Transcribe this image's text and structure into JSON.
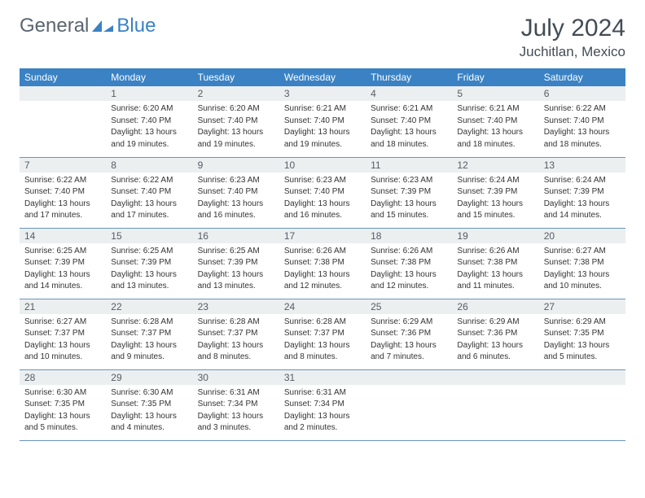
{
  "brand": {
    "part1": "General",
    "part2": "Blue",
    "text_color": "#5a6570",
    "accent_color": "#3a82c4"
  },
  "title": "July 2024",
  "location": "Juchitlan, Mexico",
  "header_bg": "#3a82c4",
  "header_fg": "#ffffff",
  "daynum_bg": "#eceff0",
  "border_color": "#6a94b8",
  "text_color": "#333333",
  "day_names": [
    "Sunday",
    "Monday",
    "Tuesday",
    "Wednesday",
    "Thursday",
    "Friday",
    "Saturday"
  ],
  "weeks": [
    [
      null,
      {
        "n": "1",
        "sunrise": "6:20 AM",
        "sunset": "7:40 PM",
        "daylight": "13 hours and 19 minutes."
      },
      {
        "n": "2",
        "sunrise": "6:20 AM",
        "sunset": "7:40 PM",
        "daylight": "13 hours and 19 minutes."
      },
      {
        "n": "3",
        "sunrise": "6:21 AM",
        "sunset": "7:40 PM",
        "daylight": "13 hours and 19 minutes."
      },
      {
        "n": "4",
        "sunrise": "6:21 AM",
        "sunset": "7:40 PM",
        "daylight": "13 hours and 18 minutes."
      },
      {
        "n": "5",
        "sunrise": "6:21 AM",
        "sunset": "7:40 PM",
        "daylight": "13 hours and 18 minutes."
      },
      {
        "n": "6",
        "sunrise": "6:22 AM",
        "sunset": "7:40 PM",
        "daylight": "13 hours and 18 minutes."
      }
    ],
    [
      {
        "n": "7",
        "sunrise": "6:22 AM",
        "sunset": "7:40 PM",
        "daylight": "13 hours and 17 minutes."
      },
      {
        "n": "8",
        "sunrise": "6:22 AM",
        "sunset": "7:40 PM",
        "daylight": "13 hours and 17 minutes."
      },
      {
        "n": "9",
        "sunrise": "6:23 AM",
        "sunset": "7:40 PM",
        "daylight": "13 hours and 16 minutes."
      },
      {
        "n": "10",
        "sunrise": "6:23 AM",
        "sunset": "7:40 PM",
        "daylight": "13 hours and 16 minutes."
      },
      {
        "n": "11",
        "sunrise": "6:23 AM",
        "sunset": "7:39 PM",
        "daylight": "13 hours and 15 minutes."
      },
      {
        "n": "12",
        "sunrise": "6:24 AM",
        "sunset": "7:39 PM",
        "daylight": "13 hours and 15 minutes."
      },
      {
        "n": "13",
        "sunrise": "6:24 AM",
        "sunset": "7:39 PM",
        "daylight": "13 hours and 14 minutes."
      }
    ],
    [
      {
        "n": "14",
        "sunrise": "6:25 AM",
        "sunset": "7:39 PM",
        "daylight": "13 hours and 14 minutes."
      },
      {
        "n": "15",
        "sunrise": "6:25 AM",
        "sunset": "7:39 PM",
        "daylight": "13 hours and 13 minutes."
      },
      {
        "n": "16",
        "sunrise": "6:25 AM",
        "sunset": "7:39 PM",
        "daylight": "13 hours and 13 minutes."
      },
      {
        "n": "17",
        "sunrise": "6:26 AM",
        "sunset": "7:38 PM",
        "daylight": "13 hours and 12 minutes."
      },
      {
        "n": "18",
        "sunrise": "6:26 AM",
        "sunset": "7:38 PM",
        "daylight": "13 hours and 12 minutes."
      },
      {
        "n": "19",
        "sunrise": "6:26 AM",
        "sunset": "7:38 PM",
        "daylight": "13 hours and 11 minutes."
      },
      {
        "n": "20",
        "sunrise": "6:27 AM",
        "sunset": "7:38 PM",
        "daylight": "13 hours and 10 minutes."
      }
    ],
    [
      {
        "n": "21",
        "sunrise": "6:27 AM",
        "sunset": "7:37 PM",
        "daylight": "13 hours and 10 minutes."
      },
      {
        "n": "22",
        "sunrise": "6:28 AM",
        "sunset": "7:37 PM",
        "daylight": "13 hours and 9 minutes."
      },
      {
        "n": "23",
        "sunrise": "6:28 AM",
        "sunset": "7:37 PM",
        "daylight": "13 hours and 8 minutes."
      },
      {
        "n": "24",
        "sunrise": "6:28 AM",
        "sunset": "7:37 PM",
        "daylight": "13 hours and 8 minutes."
      },
      {
        "n": "25",
        "sunrise": "6:29 AM",
        "sunset": "7:36 PM",
        "daylight": "13 hours and 7 minutes."
      },
      {
        "n": "26",
        "sunrise": "6:29 AM",
        "sunset": "7:36 PM",
        "daylight": "13 hours and 6 minutes."
      },
      {
        "n": "27",
        "sunrise": "6:29 AM",
        "sunset": "7:35 PM",
        "daylight": "13 hours and 5 minutes."
      }
    ],
    [
      {
        "n": "28",
        "sunrise": "6:30 AM",
        "sunset": "7:35 PM",
        "daylight": "13 hours and 5 minutes."
      },
      {
        "n": "29",
        "sunrise": "6:30 AM",
        "sunset": "7:35 PM",
        "daylight": "13 hours and 4 minutes."
      },
      {
        "n": "30",
        "sunrise": "6:31 AM",
        "sunset": "7:34 PM",
        "daylight": "13 hours and 3 minutes."
      },
      {
        "n": "31",
        "sunrise": "6:31 AM",
        "sunset": "7:34 PM",
        "daylight": "13 hours and 2 minutes."
      },
      null,
      null,
      null
    ]
  ]
}
